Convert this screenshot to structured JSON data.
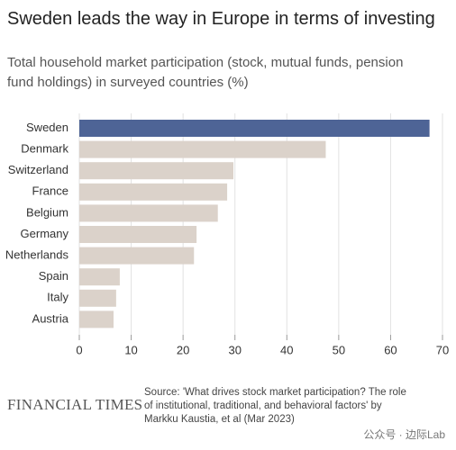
{
  "chart_data": {
    "type": "hbar",
    "title": "Sweden leads the way in Europe in terms of investing",
    "subtitle": "Total household market participation (stock, mutual funds, pension fund holdings) in surveyed countries (%)",
    "categories": [
      "Sweden",
      "Denmark",
      "Switzerland",
      "France",
      "Belgium",
      "Germany",
      "Netherlands",
      "Spain",
      "Italy",
      "Austria"
    ],
    "values": [
      67.5,
      47.5,
      29.7,
      28.5,
      26.7,
      22.6,
      22.1,
      7.8,
      7.1,
      6.6
    ],
    "colors": [
      "#4e6496",
      "#dbd2ca",
      "#dbd2ca",
      "#dbd2ca",
      "#dbd2ca",
      "#dbd2ca",
      "#dbd2ca",
      "#dbd2ca",
      "#dbd2ca",
      "#dbd2ca"
    ],
    "xlim": [
      0,
      70
    ],
    "xticks": [
      0,
      10,
      20,
      30,
      40,
      50,
      60,
      70
    ],
    "grid": true,
    "brand": "FINANCIAL TIMES",
    "source": "Source: 'What drives stock market participation? The role of institutional, traditional, and behavioral factors' by Markku Kaustia, et al (Mar 2023)",
    "watermark": "公众号 · 边际Lab"
  }
}
